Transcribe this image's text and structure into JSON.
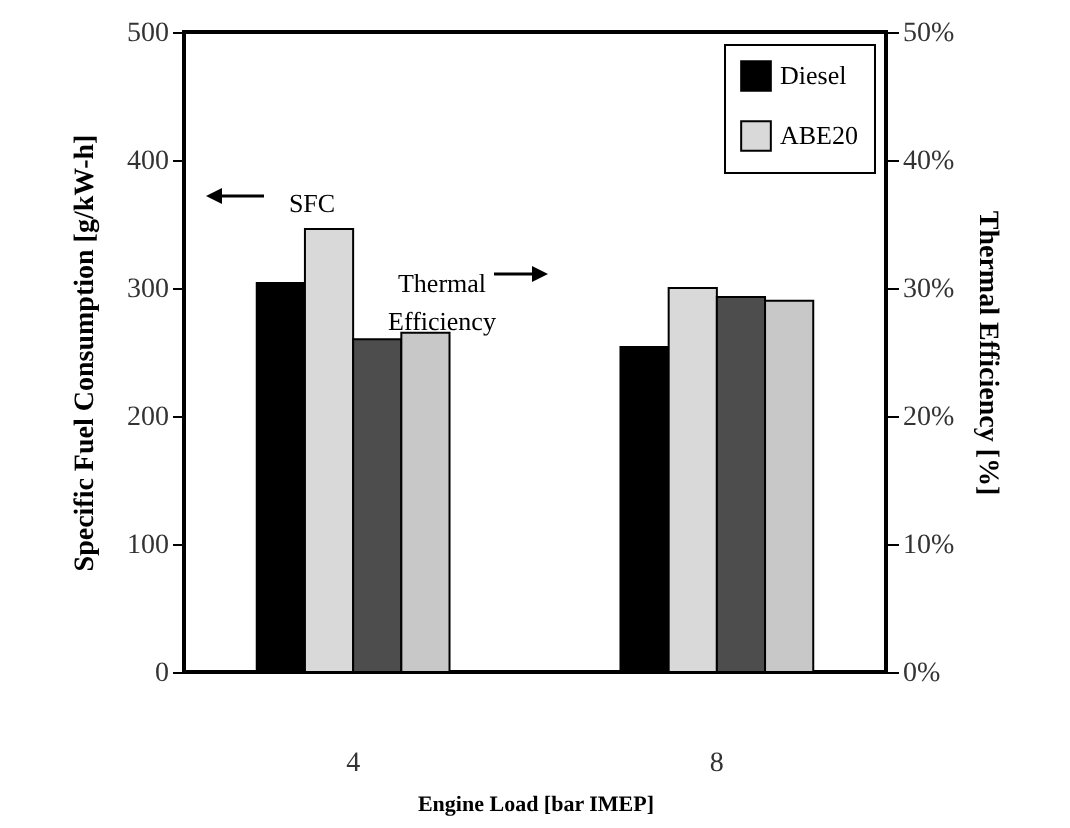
{
  "chart_data": {
    "type": "bar",
    "xlabel": "Engine Load [bar IMEP]",
    "ylabel": "Specific Fuel Consumption [g/kW-h]",
    "y2label": "Thermal Efficiency [%]",
    "categories": [
      "4",
      "8"
    ],
    "series": [
      {
        "name": "Diesel",
        "color": "#000000",
        "values": [
          304,
          254
        ]
      },
      {
        "name": "ABE20",
        "color": "#d9d9d9",
        "values": [
          346,
          300
        ]
      },
      {
        "color": "#4d4d4d",
        "values": [
          26.0,
          29.3
        ],
        "axis": "y2"
      },
      {
        "color": "#c8c8c8",
        "values": [
          26.5,
          29.0
        ],
        "axis": "y2"
      }
    ],
    "ylim": [
      0,
      500
    ],
    "yticks": [
      0,
      100,
      200,
      300,
      400,
      500
    ],
    "y2lim": [
      0,
      50
    ],
    "y2ticks": [
      {
        "value": 0,
        "label": "0%"
      },
      {
        "value": 10,
        "label": "10%"
      },
      {
        "value": 20,
        "label": "20%"
      },
      {
        "value": 30,
        "label": "30%"
      },
      {
        "value": 40,
        "label": "40%"
      },
      {
        "value": 50,
        "label": "50%"
      }
    ],
    "annotations": [
      "SFC",
      "Thermal Efficiency"
    ],
    "legend": "top right"
  }
}
